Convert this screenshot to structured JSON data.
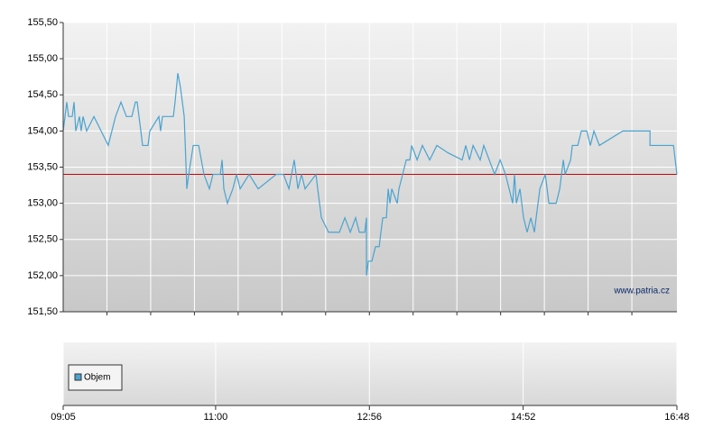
{
  "chart_data": {
    "type": "line",
    "x": [
      545,
      546.4,
      547.7,
      549.1,
      551.8,
      553.2,
      554.5,
      557.3,
      558.6,
      560,
      562.7,
      568.2,
      579,
      584.5,
      588.6,
      592.7,
      596.8,
      599.5,
      600.8,
      603.6,
      604.9,
      609,
      610.4,
      617.2,
      618.5,
      619.9,
      628.1,
      629.4,
      631.5,
      633.5,
      636.3,
      638.3,
      639.7,
      643.1,
      647.2,
      651.2,
      655.3,
      658,
      662.1,
      663.5,
      664.9,
      666.2,
      668.9,
      673,
      675.8,
      678.5,
      685.3,
      692.1,
      705.7,
      711.2,
      715.3,
      719.3,
      722.1,
      724.8,
      727.5,
      735.7,
      737,
      739.8,
      745.2,
      753.4,
      757.5,
      761.6,
      765.6,
      768.4,
      772.5,
      773.8,
      773.8,
      775.2,
      777.9,
      780.6,
      783.4,
      784.7,
      786.1,
      788.8,
      790.2,
      791.5,
      792.9,
      797,
      798.3,
      801.1,
      803.8,
      806.5,
      807.9,
      812,
      816,
      821.5,
      826.9,
      835.1,
      846,
      848.7,
      851.5,
      854.2,
      859.6,
      862.3,
      870.5,
      874.6,
      878.7,
      881.4,
      884.1,
      885.5,
      886.9,
      889.6,
      892.3,
      895,
      897.8,
      900.5,
      901.8,
      904.6,
      908.7,
      911.4,
      916.9,
      919.6,
      922.3,
      923.7,
      927.8,
      929.1,
      933.2,
      935.9,
      940,
      942.7,
      945.4,
      949.5,
      967.2,
      974,
      987.7,
      987.7,
      1005.4,
      1008
    ],
    "series": [
      {
        "color": "#4aa3d0",
        "values": [
          154.0,
          154.2,
          154.4,
          154.2,
          154.2,
          154.4,
          154.0,
          154.2,
          154.0,
          154.2,
          154.0,
          154.2,
          153.8,
          154.2,
          154.4,
          154.2,
          154.2,
          154.4,
          154.4,
          154.0,
          153.8,
          153.8,
          154.0,
          154.2,
          154.0,
          154.2,
          154.2,
          154.4,
          154.8,
          154.6,
          154.2,
          153.2,
          153.4,
          153.8,
          153.8,
          153.4,
          153.2,
          153.4,
          153.4,
          153.4,
          153.6,
          153.2,
          153.0,
          153.2,
          153.4,
          153.2,
          153.4,
          153.2,
          153.4,
          153.4,
          153.2,
          153.6,
          153.2,
          153.4,
          153.2,
          153.4,
          153.2,
          152.8,
          152.6,
          152.6,
          152.8,
          152.6,
          152.8,
          152.6,
          152.6,
          152.8,
          152.0,
          152.2,
          152.2,
          152.4,
          152.4,
          152.6,
          152.8,
          152.8,
          153.2,
          153.0,
          153.2,
          153.0,
          153.2,
          153.4,
          153.6,
          153.6,
          153.8,
          153.6,
          153.8,
          153.6,
          153.8,
          153.7,
          153.6,
          153.8,
          153.6,
          153.8,
          153.6,
          153.8,
          153.4,
          153.6,
          153.4,
          153.2,
          153.0,
          153.4,
          153.0,
          153.2,
          152.8,
          152.6,
          152.8,
          152.6,
          152.8,
          153.2,
          153.4,
          153.0,
          153.0,
          153.2,
          153.6,
          153.4,
          153.6,
          153.8,
          153.8,
          154.0,
          154.0,
          153.8,
          154.0,
          153.8,
          154.0,
          154.0,
          154.0,
          153.8,
          153.8,
          153.4
        ]
      }
    ],
    "reference_line": {
      "value": 153.4,
      "color": "#cc0000"
    },
    "xlim": [
      545,
      1008
    ],
    "xticks": [
      {
        "value": 545,
        "label": "09:05"
      },
      {
        "value": 660,
        "label": "11:00"
      },
      {
        "value": 776,
        "label": "12:56"
      },
      {
        "value": 892,
        "label": "14:52"
      },
      {
        "value": 1008,
        "label": "16:48"
      }
    ],
    "x_gridlines": [
      578,
      611,
      644,
      677,
      710,
      743,
      776,
      809,
      842,
      875,
      908,
      941,
      974
    ],
    "ylim": [
      151.5,
      155.5
    ],
    "yticks": [
      {
        "value": 151.5,
        "label": "151,50"
      },
      {
        "value": 152,
        "label": "152,00"
      },
      {
        "value": 152.5,
        "label": "152,50"
      },
      {
        "value": 153,
        "label": "153,00"
      },
      {
        "value": 153.5,
        "label": "153,50"
      },
      {
        "value": 154,
        "label": "154,00"
      },
      {
        "value": 154.5,
        "label": "154,50"
      },
      {
        "value": 155,
        "label": "155,00"
      },
      {
        "value": 155.5,
        "label": "155,50"
      }
    ],
    "grid": true,
    "watermark": "www.patria.cz",
    "volume_panel": {
      "legend": "Objem",
      "color": "#4aa3d0"
    }
  }
}
